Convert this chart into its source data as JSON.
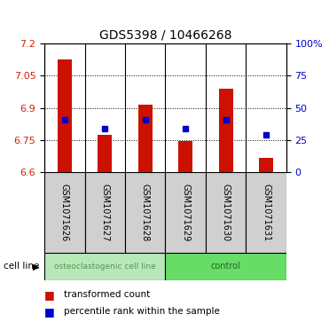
{
  "title": "GDS5398 / 10466268",
  "samples": [
    "GSM1071626",
    "GSM1071627",
    "GSM1071628",
    "GSM1071629",
    "GSM1071630",
    "GSM1071631"
  ],
  "bar_tops": [
    7.125,
    6.775,
    6.915,
    6.745,
    6.99,
    6.665
  ],
  "bar_bottoms": [
    6.6,
    6.6,
    6.6,
    6.6,
    6.6,
    6.6
  ],
  "blue_dots": [
    6.845,
    6.805,
    6.845,
    6.805,
    6.845,
    6.775
  ],
  "ylim": [
    6.6,
    7.2
  ],
  "yticks_left": [
    6.6,
    6.75,
    6.9,
    7.05,
    7.2
  ],
  "yticks_right_pos": [
    6.6,
    6.75,
    6.9,
    7.05,
    7.2
  ],
  "yticks_right_labels": [
    "0",
    "25",
    "50",
    "75",
    "100%"
  ],
  "bar_color": "#cc1100",
  "dot_color": "#0000cc",
  "group_labels": [
    "osteoclastogenic cell line",
    "control"
  ],
  "group_colors": [
    "#b8e8b8",
    "#66dd66"
  ],
  "group_text_colors": [
    "#559955",
    "#226622"
  ],
  "cell_line_label": "cell line",
  "legend_items": [
    "transformed count",
    "percentile rank within the sample"
  ],
  "label_color_left": "#cc2200",
  "label_color_right": "#0000cc",
  "sample_bg": "#d0d0d0",
  "bar_width": 0.35
}
